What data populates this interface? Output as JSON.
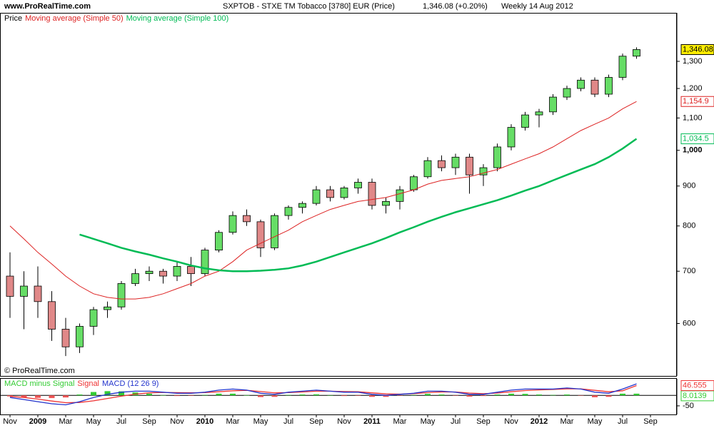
{
  "chart_data": [
    {
      "type": "candlestick",
      "website": "www.ProRealTime.com",
      "title": "SXPTOB - STXE TM Tobacco [3780] EUR (Price)",
      "change": "1,346.08 (+0.20%)",
      "period": "Weekly  14 Aug 2012",
      "legend_label": "Price",
      "copyright": "© ProRealTime.com",
      "categories": [
        "Nov",
        null,
        "2009",
        null,
        "Mar",
        null,
        "May",
        null,
        "Jul",
        null,
        "Sep",
        null,
        "Nov",
        null,
        "2010",
        null,
        "Mar",
        null,
        "May",
        null,
        "Jul",
        null,
        "Sep",
        null,
        "Nov",
        null,
        "2011",
        null,
        "Mar",
        null,
        "May",
        null,
        "Jul",
        null,
        "Sep",
        null,
        "Nov",
        null,
        "2012",
        null,
        "Mar",
        null,
        "May",
        null,
        "Jul",
        null,
        "Sep"
      ],
      "open": [
        690,
        650,
        670,
        640,
        590,
        560,
        595,
        625,
        630,
        675,
        695,
        700,
        690,
        710,
        695,
        745,
        785,
        825,
        810,
        750,
        825,
        845,
        855,
        890,
        870,
        895,
        910,
        850,
        860,
        890,
        925,
        970,
        950,
        980,
        930,
        950,
        1010,
        1070,
        1110,
        1120,
        1170,
        1200,
        1230,
        1180,
        1240,
        1320,
        null
      ],
      "high": [
        740,
        700,
        710,
        660,
        610,
        600,
        630,
        640,
        680,
        705,
        710,
        705,
        720,
        730,
        750,
        790,
        835,
        840,
        815,
        830,
        850,
        860,
        900,
        900,
        900,
        920,
        920,
        870,
        900,
        930,
        980,
        985,
        990,
        990,
        960,
        1020,
        1080,
        1120,
        1130,
        1180,
        1210,
        1240,
        1240,
        1250,
        1330,
        1355,
        null
      ],
      "low": [
        610,
        590,
        610,
        570,
        545,
        550,
        580,
        610,
        625,
        670,
        680,
        675,
        680,
        670,
        690,
        740,
        780,
        800,
        730,
        745,
        815,
        830,
        850,
        860,
        865,
        880,
        840,
        830,
        840,
        885,
        920,
        940,
        930,
        880,
        900,
        940,
        1000,
        1060,
        1070,
        1110,
        1160,
        1190,
        1170,
        1170,
        1230,
        1310,
        null
      ],
      "close": [
        650,
        670,
        640,
        590,
        560,
        595,
        625,
        630,
        675,
        695,
        700,
        690,
        710,
        695,
        745,
        785,
        825,
        810,
        750,
        825,
        845,
        855,
        890,
        870,
        895,
        910,
        850,
        860,
        890,
        925,
        970,
        950,
        980,
        930,
        950,
        1010,
        1070,
        1110,
        1120,
        1170,
        1200,
        1230,
        1180,
        1240,
        1320,
        1346.08,
        null
      ],
      "close_label": "1,346.08",
      "up_color": "#66dd66",
      "down_color": "#e08888",
      "log_scale": true,
      "ylim": [
        514,
        1500
      ],
      "yticks": [
        600,
        700,
        800,
        900,
        {
          "value": 1000,
          "label": "1,000"
        },
        {
          "value": 1100,
          "label": "1,100"
        },
        {
          "value": 1200,
          "label": "1,200"
        },
        {
          "value": 1300,
          "label": "1,300"
        }
      ],
      "series": [
        {
          "name": "Moving average (Simple 50)",
          "color": "#dd2222",
          "last_label": "1,154.9",
          "values": [
            800,
            770,
            740,
            715,
            690,
            670,
            655,
            648,
            645,
            645,
            648,
            655,
            665,
            675,
            690,
            700,
            720,
            745,
            760,
            775,
            790,
            810,
            825,
            840,
            850,
            860,
            865,
            870,
            880,
            890,
            905,
            915,
            920,
            925,
            935,
            945,
            960,
            975,
            990,
            1010,
            1035,
            1060,
            1080,
            1100,
            1130,
            1154.9,
            null
          ]
        },
        {
          "name": "Moving average (Simple 100)",
          "color": "#00bb55",
          "last_label": "1,034.5",
          "values": [
            null,
            null,
            null,
            null,
            null,
            780,
            770,
            760,
            750,
            742,
            735,
            727,
            720,
            712,
            706,
            702,
            700,
            700,
            701,
            703,
            706,
            712,
            720,
            730,
            740,
            750,
            760,
            772,
            785,
            797,
            810,
            822,
            833,
            843,
            853,
            863,
            875,
            888,
            900,
            915,
            930,
            945,
            960,
            980,
            1005,
            1034.5,
            null
          ]
        }
      ]
    },
    {
      "type": "macd",
      "ylim": [
        -91,
        79
      ],
      "yticks": [
        -50
      ],
      "series": [
        {
          "name": "MACD minus Signal",
          "color": "#33cc33",
          "negative_color": "#ee5555",
          "last_label": "8.0139",
          "values": [
            -5,
            -10,
            -12,
            -13,
            -10,
            4,
            16,
            20,
            19,
            14,
            8,
            1,
            -3,
            -2,
            2,
            8,
            8,
            1,
            -8,
            -7,
            2,
            4,
            5,
            0,
            -3,
            -2,
            -7,
            -7,
            -1,
            2,
            7,
            4,
            -1,
            -6,
            -3,
            4,
            8,
            7,
            4,
            2,
            4,
            -1,
            -9,
            -7,
            8,
            8.0139,
            null
          ]
        },
        {
          "name": "Signal",
          "color": "#ee3333",
          "last_label": "46.555",
          "values": [
            -5,
            -10,
            -18,
            -27,
            -35,
            -34,
            -26,
            -15,
            -4,
            6,
            12,
            14,
            13,
            12,
            13,
            17,
            22,
            24,
            18,
            12,
            13,
            16,
            20,
            20,
            18,
            17,
            12,
            7,
            6,
            8,
            13,
            16,
            16,
            11,
            8,
            11,
            17,
            23,
            26,
            28,
            31,
            31,
            24,
            17,
            22,
            46.555,
            null
          ]
        },
        {
          "name": "MACD (12 26 9)",
          "color": "#2233cc",
          "values": [
            -10,
            -20,
            -30,
            -40,
            -45,
            -30,
            -10,
            5,
            15,
            20,
            20,
            15,
            10,
            10,
            15,
            25,
            30,
            25,
            10,
            5,
            15,
            20,
            25,
            20,
            15,
            15,
            5,
            0,
            5,
            10,
            20,
            20,
            15,
            5,
            5,
            15,
            25,
            30,
            30,
            30,
            35,
            30,
            15,
            10,
            30,
            54.69,
            null
          ]
        }
      ]
    }
  ]
}
